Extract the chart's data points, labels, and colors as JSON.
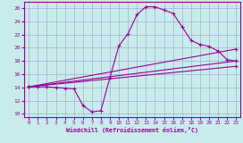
{
  "xlabel": "Windchill (Refroidissement éolien,°C)",
  "bg_color": "#c8ecec",
  "line_color": "#990099",
  "grid_color": "#aaaacc",
  "xlim": [
    -0.5,
    23.5
  ],
  "ylim": [
    9.5,
    27
  ],
  "xticks": [
    0,
    1,
    2,
    3,
    4,
    5,
    6,
    7,
    8,
    9,
    10,
    11,
    12,
    13,
    14,
    15,
    16,
    17,
    18,
    19,
    20,
    21,
    22,
    23
  ],
  "yticks": [
    10,
    12,
    14,
    16,
    18,
    20,
    22,
    24,
    26
  ],
  "line1_x": [
    0,
    1,
    2,
    3,
    4,
    5,
    6,
    7,
    8,
    9,
    10,
    11,
    12,
    13,
    14,
    15,
    16,
    17,
    18,
    19,
    20,
    21,
    22,
    23
  ],
  "line1_y": [
    14.1,
    14.1,
    14.1,
    14.0,
    13.9,
    13.8,
    11.3,
    10.3,
    10.5,
    15.5,
    20.3,
    22.1,
    25.0,
    26.2,
    26.2,
    25.7,
    25.2,
    23.2,
    21.1,
    20.5,
    20.2,
    19.5,
    18.2,
    18.0
  ],
  "line2_x": [
    0,
    23
  ],
  "line2_y": [
    14.1,
    18.0
  ],
  "line3_x": [
    0,
    23
  ],
  "line3_y": [
    14.1,
    19.8
  ],
  "line4_x": [
    0,
    23
  ],
  "line4_y": [
    14.1,
    17.2
  ]
}
